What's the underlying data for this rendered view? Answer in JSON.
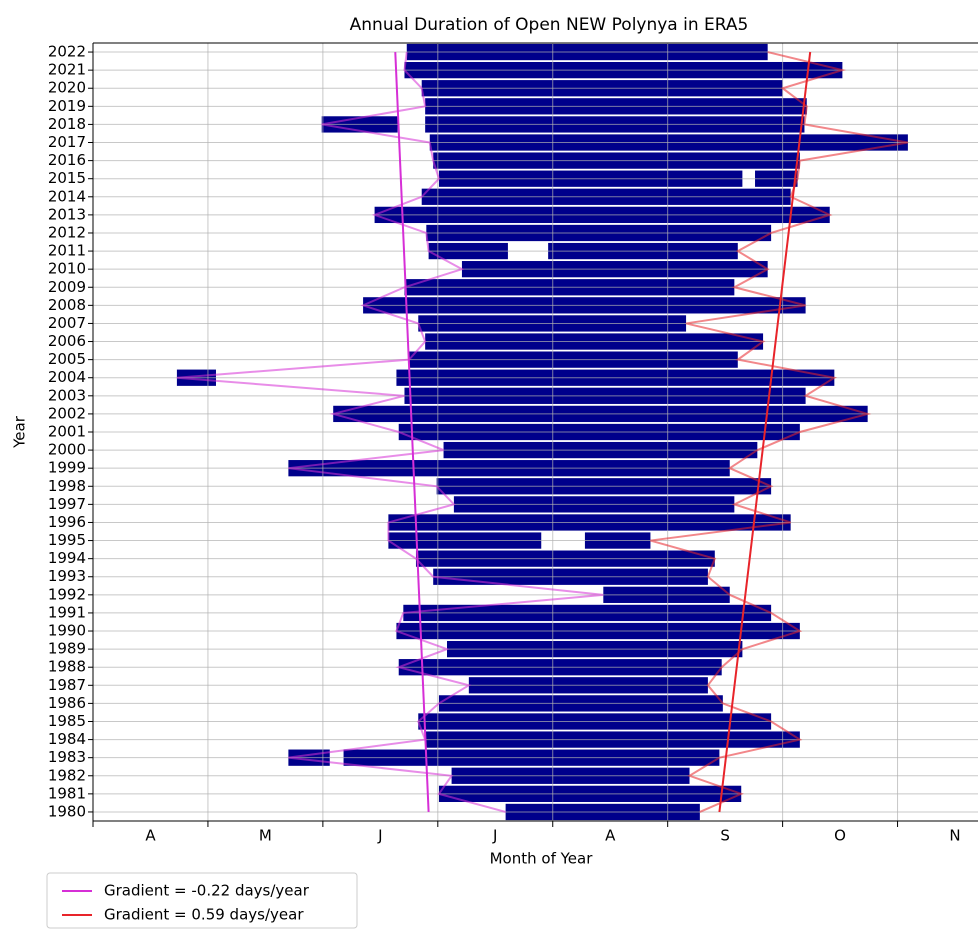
{
  "chart_data": {
    "type": "range-bar",
    "title": "Annual Duration of Open NEW Polynya in ERA5",
    "x_label": "Month of Year",
    "y_label": "Year",
    "xlim": [
      4,
      11.7
    ],
    "xticks": [
      {
        "value": 4.5,
        "label": "A"
      },
      {
        "value": 5.5,
        "label": "M"
      },
      {
        "value": 6.5,
        "label": "J"
      },
      {
        "value": 7.5,
        "label": "J"
      },
      {
        "value": 8.5,
        "label": "A"
      },
      {
        "value": 9.5,
        "label": "S"
      },
      {
        "value": 10.5,
        "label": "O"
      },
      {
        "value": 11.5,
        "label": "N"
      }
    ],
    "xminor": [
      4,
      5,
      6,
      7,
      8,
      9,
      10,
      11
    ],
    "grid": true,
    "color": "#00008b",
    "categories": [
      "1980",
      "1981",
      "1982",
      "1983",
      "1984",
      "1985",
      "1986",
      "1987",
      "1988",
      "1989",
      "1990",
      "1991",
      "1992",
      "1993",
      "1994",
      "1995",
      "1996",
      "1997",
      "1998",
      "1999",
      "2000",
      "2001",
      "2002",
      "2003",
      "2004",
      "2005",
      "2006",
      "2007",
      "2008",
      "2009",
      "2010",
      "2011",
      "2012",
      "2013",
      "2014",
      "2015",
      "2016",
      "2017",
      "2018",
      "2019",
      "2020",
      "2021",
      "2022"
    ],
    "segments": [
      [
        [
          7.59,
          9.28
        ]
      ],
      [
        [
          7.01,
          9.64
        ]
      ],
      [
        [
          7.12,
          9.19
        ]
      ],
      [
        [
          5.7,
          6.06
        ],
        [
          6.18,
          9.45
        ]
      ],
      [
        [
          6.89,
          10.15
        ]
      ],
      [
        [
          6.83,
          9.9
        ]
      ],
      [
        [
          7.01,
          9.48
        ]
      ],
      [
        [
          7.27,
          9.35
        ]
      ],
      [
        [
          6.66,
          9.47
        ]
      ],
      [
        [
          7.08,
          9.65
        ]
      ],
      [
        [
          6.64,
          10.15
        ]
      ],
      [
        [
          6.7,
          9.9
        ]
      ],
      [
        [
          8.44,
          9.54
        ]
      ],
      [
        [
          6.96,
          9.35
        ]
      ],
      [
        [
          6.81,
          9.41
        ]
      ],
      [
        [
          6.57,
          7.9
        ],
        [
          8.28,
          8.85
        ]
      ],
      [
        [
          6.57,
          10.07
        ]
      ],
      [
        [
          7.14,
          9.58
        ]
      ],
      [
        [
          6.99,
          9.9
        ]
      ],
      [
        [
          5.7,
          9.54
        ]
      ],
      [
        [
          7.05,
          9.78
        ]
      ],
      [
        [
          6.66,
          10.15
        ]
      ],
      [
        [
          6.09,
          10.74
        ]
      ],
      [
        [
          6.71,
          10.2
        ]
      ],
      [
        [
          4.73,
          5.07
        ],
        [
          6.64,
          10.45
        ]
      ],
      [
        [
          6.75,
          9.61
        ]
      ],
      [
        [
          6.89,
          9.83
        ]
      ],
      [
        [
          6.83,
          9.16
        ]
      ],
      [
        [
          6.35,
          10.2
        ]
      ],
      [
        [
          6.71,
          9.58
        ]
      ],
      [
        [
          7.21,
          9.87
        ]
      ],
      [
        [
          6.92,
          7.61
        ],
        [
          7.96,
          9.61
        ]
      ],
      [
        [
          6.9,
          9.9
        ]
      ],
      [
        [
          6.45,
          10.41
        ]
      ],
      [
        [
          6.86,
          10.07
        ]
      ],
      [
        [
          7.01,
          9.65
        ],
        [
          9.76,
          10.13
        ]
      ],
      [
        [
          6.96,
          10.15
        ]
      ],
      [
        [
          6.93,
          11.09
        ]
      ],
      [
        [
          5.99,
          6.65
        ],
        [
          6.89,
          10.19
        ]
      ],
      [
        [
          6.89,
          10.21
        ]
      ],
      [
        [
          6.86,
          10.0
        ]
      ],
      [
        [
          6.71,
          10.52
        ]
      ],
      [
        [
          6.73,
          9.87
        ]
      ]
    ],
    "trends": [
      {
        "name": "Gradient = -0.22 days/year",
        "color": "#d62fd6",
        "x": [
          "1980",
          "2022"
        ],
        "values": [
          6.92,
          6.63
        ],
        "edge": "start"
      },
      {
        "name": "Gradient = 0.59 days/year",
        "color": "#e8242a",
        "x": [
          "1980",
          "2022"
        ],
        "values": [
          9.45,
          10.24
        ],
        "edge": "end"
      }
    ]
  }
}
